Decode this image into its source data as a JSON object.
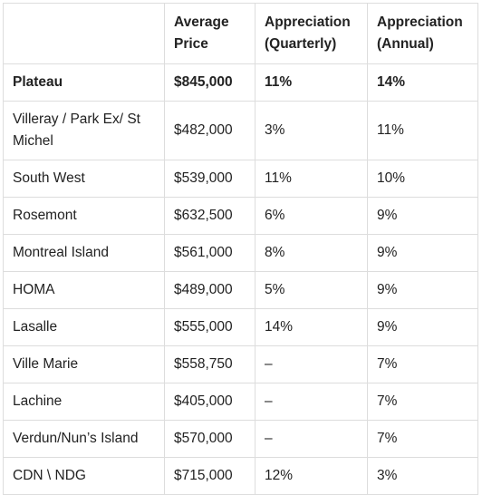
{
  "table": {
    "headers": [
      "",
      "Average Price",
      "Appreciation (Quarterly)",
      "Appreciation (Annual)"
    ],
    "rows": [
      {
        "area": "Plateau",
        "price": "$845,000",
        "quarterly": "11%",
        "annual": "14%"
      },
      {
        "area": "Villeray / Park Ex/ St Michel",
        "price": "$482,000",
        "quarterly": "3%",
        "annual": "11%"
      },
      {
        "area": "South West",
        "price": "$539,000",
        "quarterly": "11%",
        "annual": "10%"
      },
      {
        "area": "Rosemont",
        "price": "$632,500",
        "quarterly": "6%",
        "annual": "9%"
      },
      {
        "area": "Montreal Island",
        "price": "$561,000",
        "quarterly": "8%",
        "annual": "9%"
      },
      {
        "area": "HOMA",
        "price": "$489,000",
        "quarterly": "5%",
        "annual": "9%"
      },
      {
        "area": "Lasalle",
        "price": "$555,000",
        "quarterly": "14%",
        "annual": "9%"
      },
      {
        "area": "Ville Marie",
        "price": "$558,750",
        "quarterly": "–",
        "annual": "7%"
      },
      {
        "area": "Lachine",
        "price": "$405,000",
        "quarterly": "–",
        "annual": "7%"
      },
      {
        "area": "Verdun/Nun’s Island",
        "price": "$570,000",
        "quarterly": "–",
        "annual": "7%"
      },
      {
        "area": "CDN \\ NDG",
        "price": "$715,000",
        "quarterly": "12%",
        "annual": "3%"
      }
    ]
  }
}
